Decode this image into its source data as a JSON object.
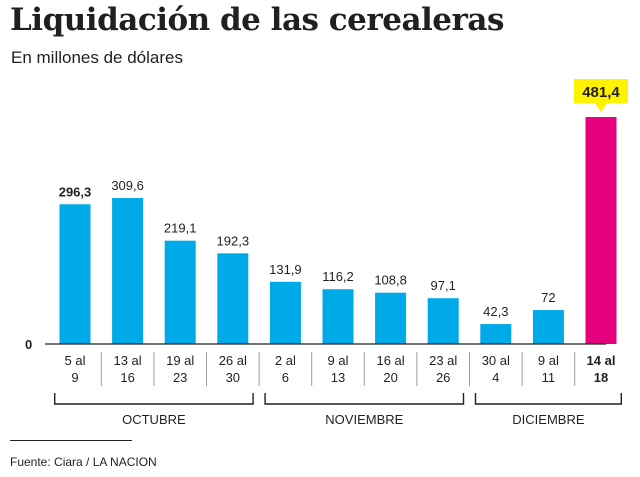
{
  "title": "Liquidación de las cerealeras",
  "subtitle": "En millones de dólares",
  "source": "Fuente: Ciara / LA NACION",
  "colors": {
    "bar": "#00a9e7",
    "highlight_bar": "#e5007e",
    "callout": "#fff200",
    "text": "#231f20"
  },
  "chart_data": {
    "type": "bar",
    "title": "Liquidación de las cerealeras",
    "subtitle": "En millones de dólares",
    "xlabel": "",
    "ylabel": "",
    "zero_label": "0",
    "ylim": [
      0,
      481.4
    ],
    "grid": false,
    "legend": "none",
    "categories": [
      [
        "5 al",
        "9"
      ],
      [
        "13 al",
        "16"
      ],
      [
        "19 al",
        "23"
      ],
      [
        "26 al",
        "30"
      ],
      [
        "2 al",
        "6"
      ],
      [
        "9 al",
        "13"
      ],
      [
        "16 al",
        "20"
      ],
      [
        "23 al",
        "26"
      ],
      [
        "30 al",
        "4"
      ],
      [
        "9 al",
        "11"
      ],
      [
        "14 al",
        "18"
      ]
    ],
    "values": [
      296.3,
      309.6,
      219.1,
      192.3,
      131.9,
      116.2,
      108.8,
      97.1,
      42.3,
      72,
      481.4
    ],
    "value_labels": [
      "296,3",
      "309,6",
      "219,1",
      "192,3",
      "131,9",
      "116,2",
      "108,8",
      "97,1",
      "42,3",
      "72",
      "481,4"
    ],
    "bold_value_labels": [
      0
    ],
    "highlight_index": 10,
    "groups": [
      {
        "label": "OCTUBRE",
        "start": 0,
        "end": 3
      },
      {
        "label": "NOVIEMBRE",
        "start": 4,
        "end": 7
      },
      {
        "label": "DICIEMBRE",
        "start": 8,
        "end": 10
      }
    ]
  }
}
